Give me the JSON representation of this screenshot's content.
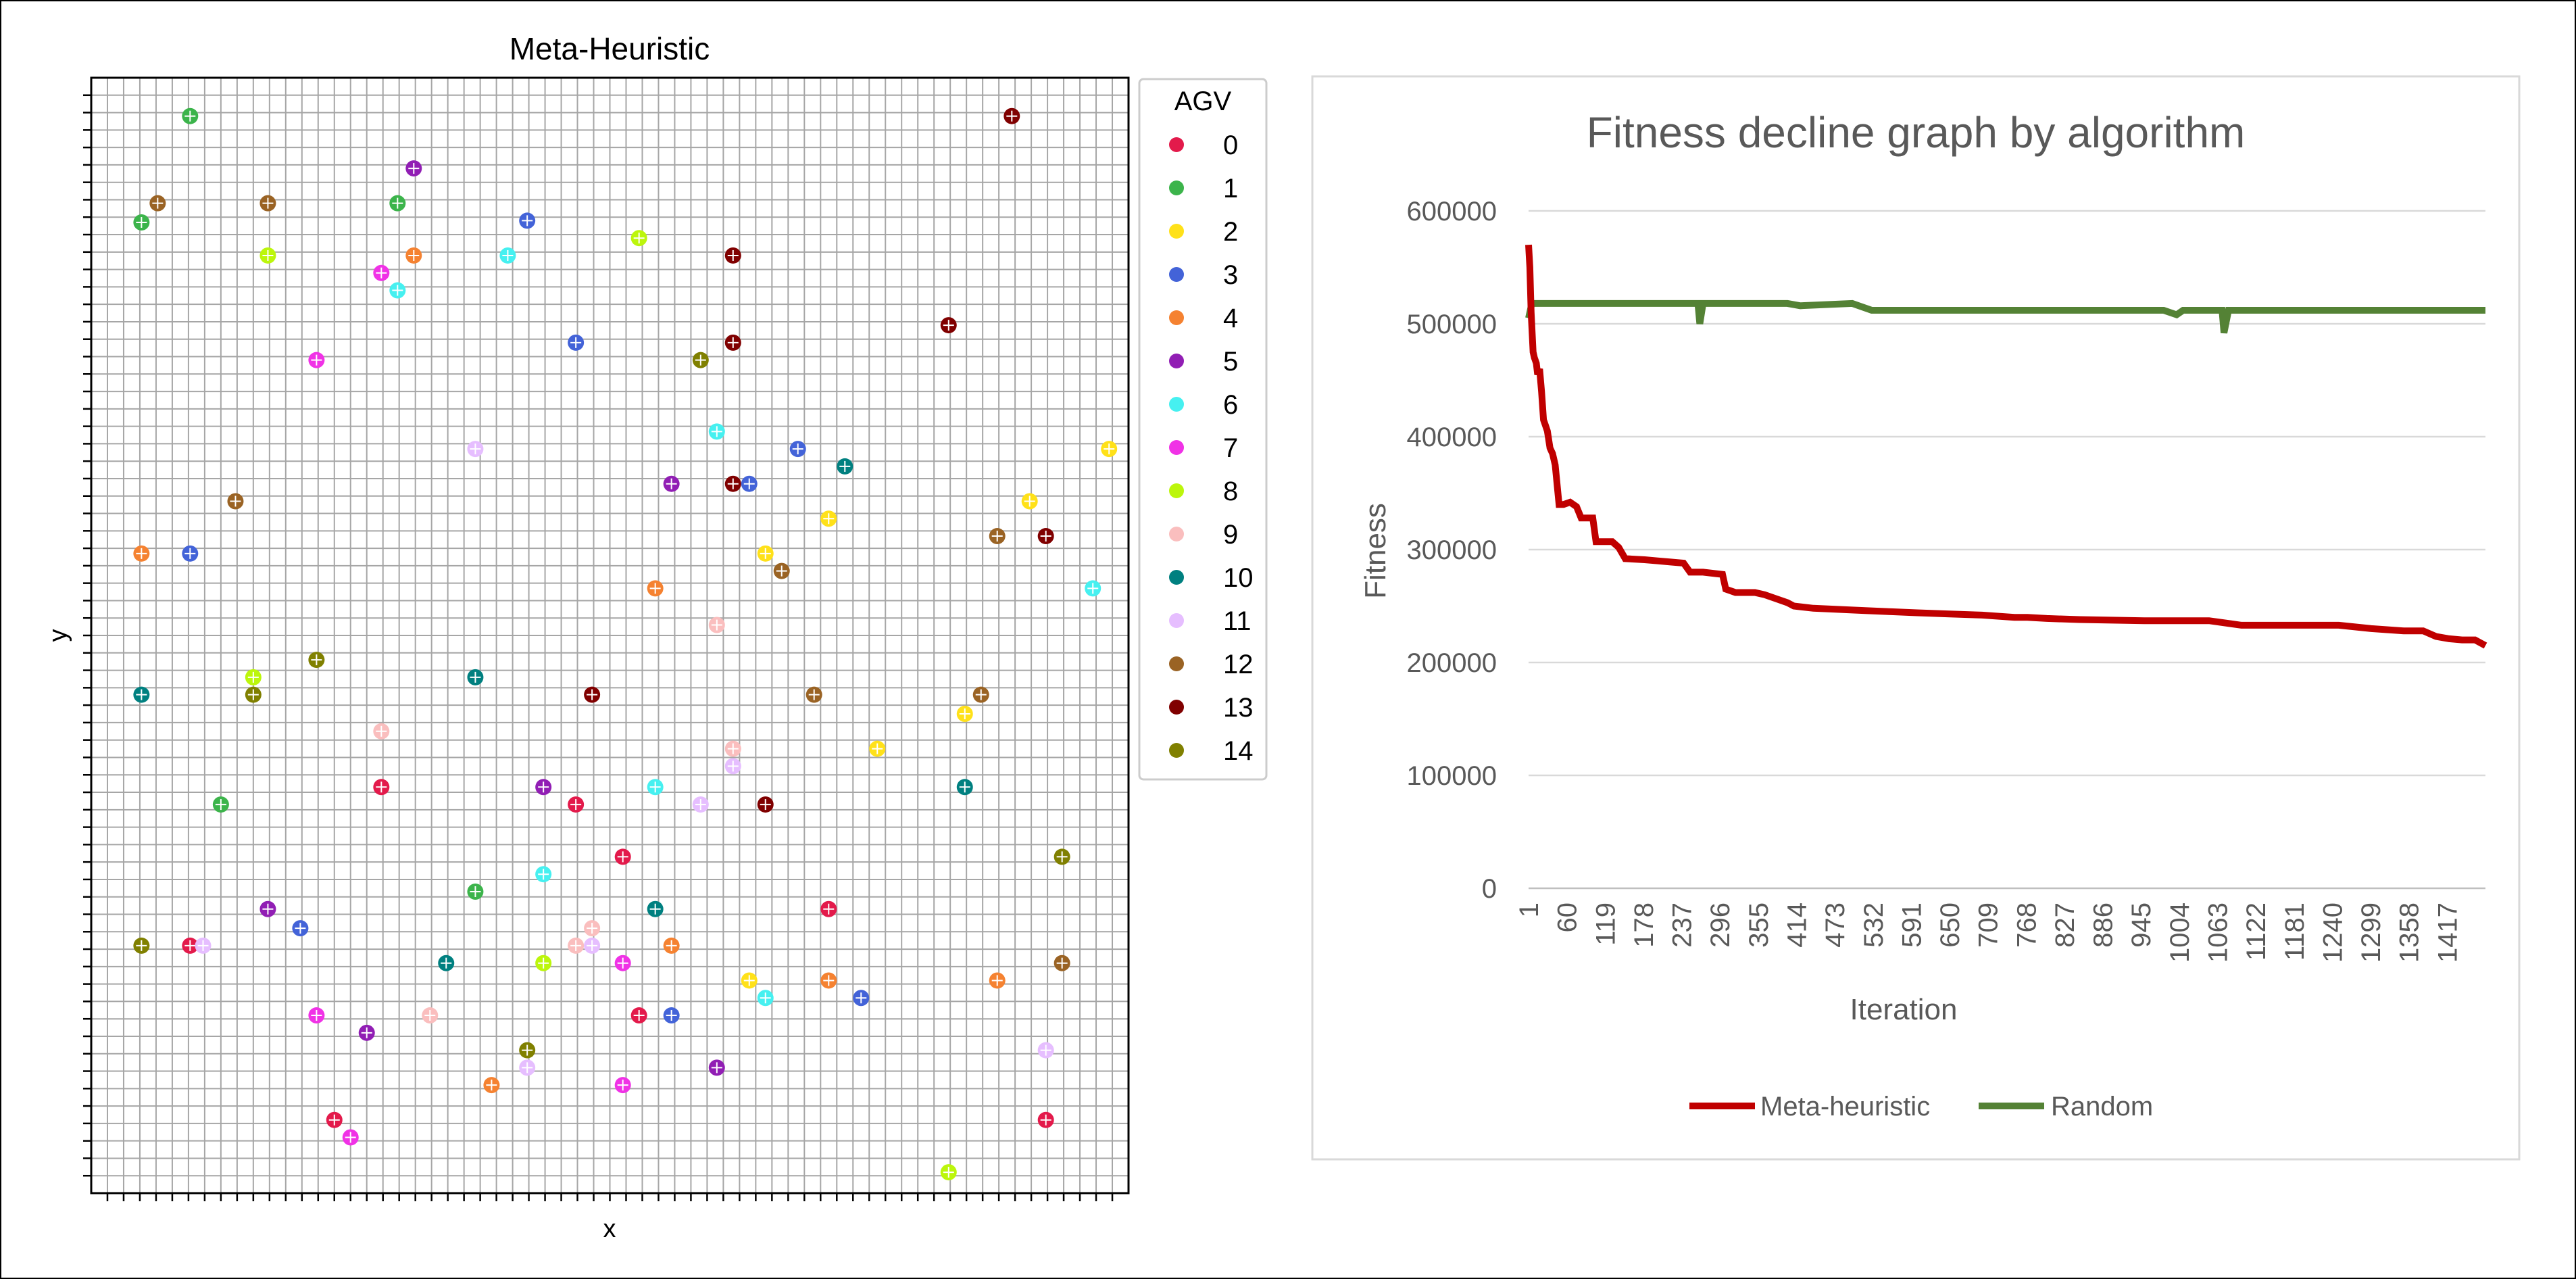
{
  "chart_data": [
    {
      "type": "scatter",
      "title": "Meta-Heuristic",
      "xlabel": "x",
      "ylabel": "y",
      "grid": true,
      "xlim": [
        0,
        64
      ],
      "ylim": [
        0,
        64
      ],
      "legend": {
        "title": "AGV",
        "placement": "right",
        "entries": [
          {
            "label": "0",
            "color": "#e31a4b"
          },
          {
            "label": "1",
            "color": "#3cb44b"
          },
          {
            "label": "2",
            "color": "#ffe119"
          },
          {
            "label": "3",
            "color": "#4363d8"
          },
          {
            "label": "4",
            "color": "#f58231"
          },
          {
            "label": "5",
            "color": "#911eb4"
          },
          {
            "label": "6",
            "color": "#46f0f0"
          },
          {
            "label": "7",
            "color": "#f032e6"
          },
          {
            "label": "8",
            "color": "#bcf60c"
          },
          {
            "label": "9",
            "color": "#fabebe"
          },
          {
            "label": "10",
            "color": "#008080"
          },
          {
            "label": "11",
            "color": "#e6beff"
          },
          {
            "label": "12",
            "color": "#9a6324"
          },
          {
            "label": "13",
            "color": "#800000"
          },
          {
            "label": "14",
            "color": "#808000"
          }
        ]
      },
      "points": [
        {
          "agv": 0,
          "x": 17.9,
          "y": 23.3
        },
        {
          "agv": 0,
          "x": 29.9,
          "y": 22.3
        },
        {
          "agv": 0,
          "x": 32.8,
          "y": 19.3
        },
        {
          "agv": 0,
          "x": 45.5,
          "y": 16.3
        },
        {
          "agv": 0,
          "x": 6.1,
          "y": 14.2
        },
        {
          "agv": 0,
          "x": 33.8,
          "y": 10.2
        },
        {
          "agv": 0,
          "x": 15.0,
          "y": 4.2
        },
        {
          "agv": 0,
          "x": 58.9,
          "y": 4.2
        },
        {
          "agv": 1,
          "x": 6.1,
          "y": 61.8
        },
        {
          "agv": 1,
          "x": 18.9,
          "y": 56.8
        },
        {
          "agv": 1,
          "x": 3.1,
          "y": 55.7
        },
        {
          "agv": 1,
          "x": 8.0,
          "y": 22.3
        },
        {
          "agv": 1,
          "x": 23.7,
          "y": 17.3
        },
        {
          "agv": 2,
          "x": 62.8,
          "y": 42.7
        },
        {
          "agv": 2,
          "x": 57.9,
          "y": 39.7
        },
        {
          "agv": 2,
          "x": 45.5,
          "y": 38.7
        },
        {
          "agv": 2,
          "x": 41.6,
          "y": 36.7
        },
        {
          "agv": 2,
          "x": 53.9,
          "y": 27.5
        },
        {
          "agv": 2,
          "x": 48.5,
          "y": 25.5
        },
        {
          "agv": 2,
          "x": 40.6,
          "y": 12.2
        },
        {
          "agv": 3,
          "x": 26.9,
          "y": 55.8
        },
        {
          "agv": 3,
          "x": 29.9,
          "y": 48.8
        },
        {
          "agv": 3,
          "x": 43.6,
          "y": 42.7
        },
        {
          "agv": 3,
          "x": 40.6,
          "y": 40.7
        },
        {
          "agv": 3,
          "x": 6.1,
          "y": 36.7
        },
        {
          "agv": 3,
          "x": 12.9,
          "y": 15.2
        },
        {
          "agv": 3,
          "x": 35.8,
          "y": 10.2
        },
        {
          "agv": 3,
          "x": 47.5,
          "y": 11.2
        },
        {
          "agv": 4,
          "x": 19.9,
          "y": 53.8
        },
        {
          "agv": 4,
          "x": 3.1,
          "y": 36.7
        },
        {
          "agv": 4,
          "x": 34.8,
          "y": 34.7
        },
        {
          "agv": 4,
          "x": 35.8,
          "y": 14.2
        },
        {
          "agv": 4,
          "x": 45.5,
          "y": 12.2
        },
        {
          "agv": 4,
          "x": 55.9,
          "y": 12.2
        },
        {
          "agv": 4,
          "x": 24.7,
          "y": 6.2
        },
        {
          "agv": 5,
          "x": 19.9,
          "y": 58.8
        },
        {
          "agv": 5,
          "x": 35.8,
          "y": 40.7
        },
        {
          "agv": 5,
          "x": 27.9,
          "y": 23.3
        },
        {
          "agv": 5,
          "x": 10.9,
          "y": 16.3
        },
        {
          "agv": 5,
          "x": 17.0,
          "y": 9.2
        },
        {
          "agv": 5,
          "x": 38.6,
          "y": 7.2
        },
        {
          "agv": 6,
          "x": 25.7,
          "y": 53.8
        },
        {
          "agv": 6,
          "x": 18.9,
          "y": 51.8
        },
        {
          "agv": 6,
          "x": 38.6,
          "y": 43.7
        },
        {
          "agv": 6,
          "x": 61.8,
          "y": 34.7
        },
        {
          "agv": 6,
          "x": 34.8,
          "y": 23.3
        },
        {
          "agv": 6,
          "x": 27.9,
          "y": 18.3
        },
        {
          "agv": 6,
          "x": 41.6,
          "y": 11.2
        },
        {
          "agv": 7,
          "x": 17.9,
          "y": 52.8
        },
        {
          "agv": 7,
          "x": 13.9,
          "y": 47.8
        },
        {
          "agv": 7,
          "x": 32.8,
          "y": 13.2
        },
        {
          "agv": 7,
          "x": 13.9,
          "y": 10.2
        },
        {
          "agv": 7,
          "x": 32.8,
          "y": 6.2
        },
        {
          "agv": 7,
          "x": 16.0,
          "y": 3.2
        },
        {
          "agv": 8,
          "x": 10.9,
          "y": 53.8
        },
        {
          "agv": 8,
          "x": 33.8,
          "y": 54.8
        },
        {
          "agv": 8,
          "x": 10.0,
          "y": 29.6
        },
        {
          "agv": 8,
          "x": 27.9,
          "y": 13.2
        },
        {
          "agv": 8,
          "x": 52.9,
          "y": 1.2
        },
        {
          "agv": 9,
          "x": 38.6,
          "y": 32.6
        },
        {
          "agv": 9,
          "x": 17.9,
          "y": 26.5
        },
        {
          "agv": 9,
          "x": 39.6,
          "y": 25.5
        },
        {
          "agv": 9,
          "x": 30.9,
          "y": 15.2
        },
        {
          "agv": 9,
          "x": 29.9,
          "y": 14.2
        },
        {
          "agv": 9,
          "x": 20.9,
          "y": 10.2
        },
        {
          "agv": 10,
          "x": 46.5,
          "y": 41.7
        },
        {
          "agv": 10,
          "x": 3.1,
          "y": 28.6
        },
        {
          "agv": 10,
          "x": 23.7,
          "y": 29.6
        },
        {
          "agv": 10,
          "x": 53.9,
          "y": 23.3
        },
        {
          "agv": 10,
          "x": 34.8,
          "y": 16.3
        },
        {
          "agv": 10,
          "x": 21.9,
          "y": 13.2
        },
        {
          "agv": 11,
          "x": 23.7,
          "y": 42.7
        },
        {
          "agv": 11,
          "x": 39.6,
          "y": 24.5
        },
        {
          "agv": 11,
          "x": 37.6,
          "y": 22.3
        },
        {
          "agv": 11,
          "x": 6.9,
          "y": 14.2
        },
        {
          "agv": 11,
          "x": 30.9,
          "y": 14.2
        },
        {
          "agv": 11,
          "x": 26.9,
          "y": 7.2
        },
        {
          "agv": 11,
          "x": 58.9,
          "y": 8.2
        },
        {
          "agv": 12,
          "x": 4.1,
          "y": 56.8
        },
        {
          "agv": 12,
          "x": 10.9,
          "y": 56.8
        },
        {
          "agv": 12,
          "x": 8.9,
          "y": 39.7
        },
        {
          "agv": 12,
          "x": 55.9,
          "y": 37.7
        },
        {
          "agv": 12,
          "x": 42.6,
          "y": 35.7
        },
        {
          "agv": 12,
          "x": 44.6,
          "y": 28.6
        },
        {
          "agv": 12,
          "x": 54.9,
          "y": 28.6
        },
        {
          "agv": 12,
          "x": 59.9,
          "y": 13.2
        },
        {
          "agv": 13,
          "x": 56.8,
          "y": 61.8
        },
        {
          "agv": 13,
          "x": 39.6,
          "y": 53.8
        },
        {
          "agv": 13,
          "x": 52.9,
          "y": 49.8
        },
        {
          "agv": 13,
          "x": 39.6,
          "y": 48.8
        },
        {
          "agv": 13,
          "x": 39.6,
          "y": 40.7
        },
        {
          "agv": 13,
          "x": 58.9,
          "y": 37.7
        },
        {
          "agv": 13,
          "x": 30.9,
          "y": 28.6
        },
        {
          "agv": 13,
          "x": 41.6,
          "y": 22.3
        },
        {
          "agv": 14,
          "x": 37.6,
          "y": 47.8
        },
        {
          "agv": 14,
          "x": 13.9,
          "y": 30.6
        },
        {
          "agv": 14,
          "x": 10.0,
          "y": 28.6
        },
        {
          "agv": 14,
          "x": 59.9,
          "y": 19.3
        },
        {
          "agv": 14,
          "x": 3.1,
          "y": 14.2
        },
        {
          "agv": 14,
          "x": 26.9,
          "y": 8.2
        }
      ]
    },
    {
      "type": "line",
      "title": "Fitness decline graph by algorithm",
      "xlabel": "Iteration",
      "ylabel": "Fitness",
      "xlim": [
        1,
        1476
      ],
      "ylim": [
        0,
        600000
      ],
      "yticks": [
        0,
        100000,
        200000,
        300000,
        400000,
        500000,
        600000
      ],
      "xtick_labels": [
        "1",
        "60",
        "119",
        "178",
        "237",
        "296",
        "355",
        "414",
        "473",
        "532",
        "591",
        "650",
        "709",
        "768",
        "827",
        "886",
        "945",
        "1004",
        "1063",
        "1122",
        "1181",
        "1240",
        "1299",
        "1358",
        "1417"
      ],
      "grid": true,
      "legend_placement": "bottom",
      "series": [
        {
          "name": "Meta-heuristic",
          "color": "#c00000",
          "x": [
            1,
            3,
            5,
            8,
            10,
            13,
            15,
            18,
            21,
            24,
            27,
            30,
            34,
            38,
            42,
            48,
            55,
            65,
            75,
            82,
            90,
            100,
            105,
            130,
            140,
            150,
            180,
            200,
            220,
            240,
            250,
            260,
            270,
            300,
            305,
            320,
            350,
            365,
            380,
            400,
            410,
            440,
            480,
            520,
            560,
            600,
            650,
            700,
            750,
            770,
            800,
            850,
            950,
            1000,
            1050,
            1100,
            1150,
            1200,
            1250,
            1300,
            1350,
            1380,
            1400,
            1420,
            1440,
            1460,
            1476
          ],
          "y": [
            570000,
            550000,
            510000,
            475000,
            470000,
            465000,
            455000,
            460000,
            440000,
            415000,
            410000,
            405000,
            390000,
            385000,
            375000,
            340000,
            340000,
            342000,
            338000,
            328000,
            328000,
            328000,
            307000,
            307000,
            302000,
            292000,
            291000,
            290000,
            289000,
            288000,
            280000,
            280000,
            280000,
            278000,
            265000,
            262000,
            262000,
            260000,
            257000,
            253000,
            250000,
            248000,
            247000,
            246000,
            245000,
            244000,
            243000,
            242000,
            240000,
            240000,
            239000,
            238000,
            237000,
            237000,
            237000,
            233000,
            233000,
            233000,
            233000,
            230000,
            228000,
            228000,
            223000,
            221000,
            220000,
            220000,
            215000
          ]
        },
        {
          "name": "Random",
          "color": "#548235",
          "x": [
            1,
            6,
            10,
            50,
            150,
            262,
            265,
            270,
            400,
            420,
            500,
            530,
            540,
            600,
            800,
            980,
            1000,
            1010,
            1070,
            1073,
            1080,
            1200,
            1476
          ],
          "y": [
            505000,
            518000,
            518000,
            518000,
            518000,
            518000,
            500000,
            518000,
            518000,
            516000,
            518000,
            512000,
            512000,
            512000,
            512000,
            512000,
            508000,
            512000,
            512000,
            492000,
            512000,
            512000,
            512000
          ]
        }
      ]
    }
  ]
}
